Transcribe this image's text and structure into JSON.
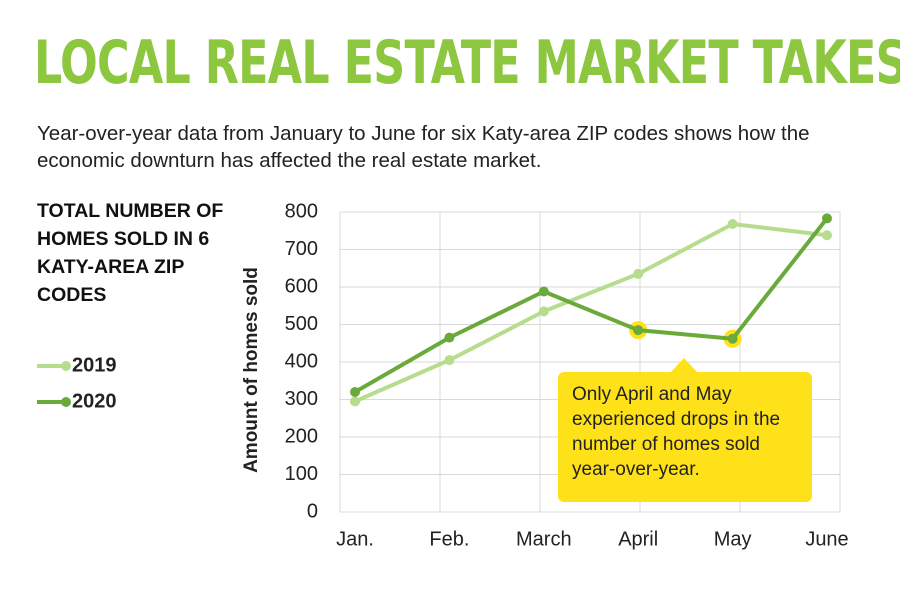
{
  "chart_data": {
    "type": "line",
    "title": "LOCAL REAL ESTATE MARKET TAKES DIP",
    "subtitle": "Year-over-year data from January to June for six Katy-area ZIP codes shows how the economic downturn has affected the real estate market.",
    "side_label": "TOTAL NUMBER OF HOMES SOLD IN 6 KATY-AREA ZIP CODES",
    "y_label": "Amount of homes sold",
    "annotation": "Only April and May experienced drops in the number of homes sold year-over-year.",
    "categories": [
      "Jan.",
      "Feb.",
      "March",
      "April",
      "May",
      "June"
    ],
    "series": [
      {
        "name": "2019",
        "color": "#b6dd8e",
        "values": [
          295,
          405,
          535,
          635,
          768,
          738
        ]
      },
      {
        "name": "2020",
        "color": "#6aaa3a",
        "values": [
          320,
          465,
          588,
          485,
          462,
          783
        ]
      }
    ],
    "highlight_series": 1,
    "highlight_indices": [
      3,
      4
    ],
    "highlight_color": "#ffe11a",
    "ylim": [
      0,
      800
    ],
    "yticks": [
      0,
      100,
      200,
      300,
      400,
      500,
      600,
      700,
      800
    ],
    "grid": true
  }
}
